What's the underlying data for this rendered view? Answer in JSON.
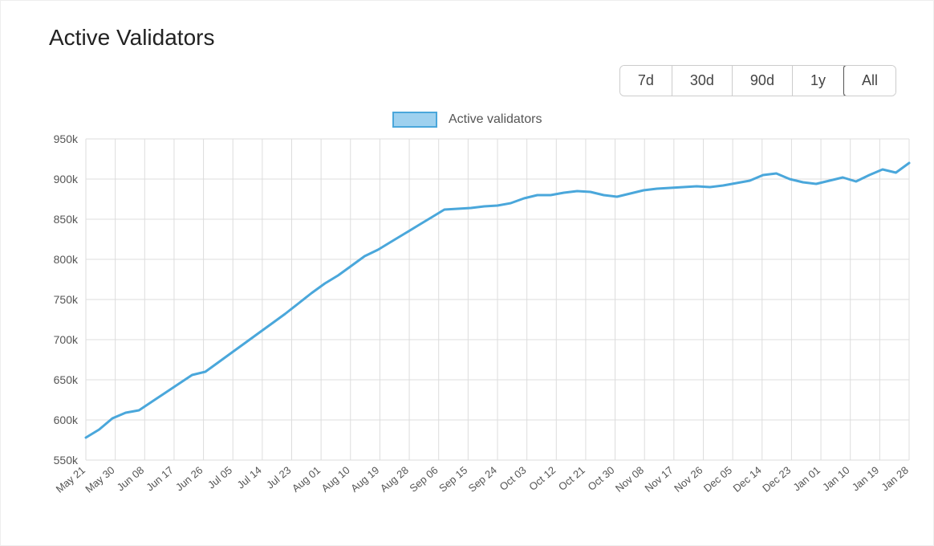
{
  "title": "Active Validators",
  "range_buttons": [
    {
      "label": "7d",
      "selected": false
    },
    {
      "label": "30d",
      "selected": false
    },
    {
      "label": "90d",
      "selected": false
    },
    {
      "label": "1y",
      "selected": false
    },
    {
      "label": "All",
      "selected": true
    }
  ],
  "legend": {
    "label": "Active validators",
    "swatch_fill": "#9ed1ef",
    "swatch_border": "#4aa7db"
  },
  "chart": {
    "type": "line",
    "line_color": "#4aa7db",
    "line_width": 3,
    "background_color": "#ffffff",
    "grid_color": "#dddddd",
    "axis_label_color": "#555555",
    "ylim": [
      550,
      950
    ],
    "ytick_step": 50,
    "ytick_suffix": "k",
    "x_labels": [
      "May 21",
      "May 30",
      "Jun 08",
      "Jun 17",
      "Jun 26",
      "Jul 05",
      "Jul 14",
      "Jul 23",
      "Aug 01",
      "Aug 10",
      "Aug 19",
      "Aug 28",
      "Sep 06",
      "Sep 15",
      "Sep 24",
      "Oct 03",
      "Oct 12",
      "Oct 21",
      "Oct 30",
      "Nov 08",
      "Nov 17",
      "Nov 26",
      "Dec 05",
      "Dec 14",
      "Dec 23",
      "Jan 01",
      "Jan 10",
      "Jan 19",
      "Jan 28"
    ],
    "series": [
      {
        "name": "Active validators",
        "values": [
          578,
          588,
          602,
          609,
          612,
          623,
          634,
          645,
          656,
          660,
          672,
          684,
          696,
          708,
          720,
          732,
          745,
          758,
          770,
          780,
          792,
          804,
          812,
          822,
          832,
          842,
          852,
          862,
          863,
          864,
          866,
          867,
          870,
          876,
          880,
          880,
          883,
          885,
          884,
          880,
          878,
          882,
          886,
          888,
          889,
          890,
          891,
          890,
          892,
          895,
          898,
          905,
          907,
          900,
          896,
          894,
          898,
          902,
          897,
          905,
          912,
          908,
          920
        ]
      }
    ],
    "x_label_rotation_deg": -40,
    "tick_fontsize": 14,
    "title_fontsize": 28
  }
}
